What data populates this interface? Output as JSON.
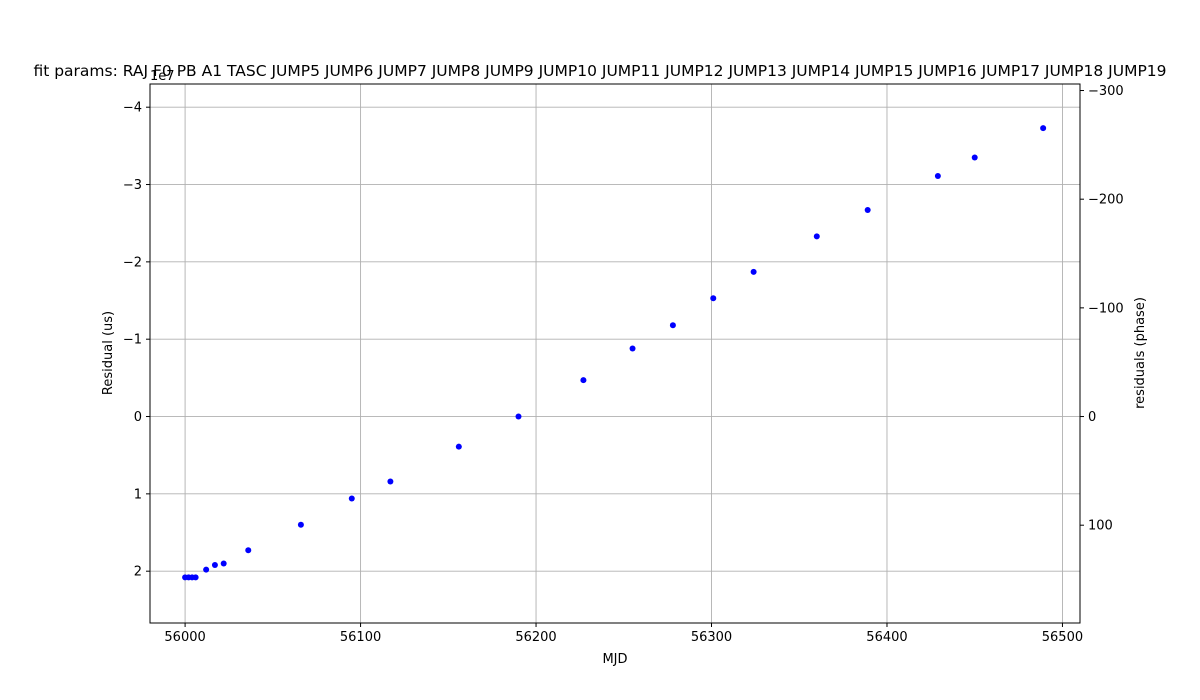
{
  "chart_data": {
    "type": "scatter",
    "title": "fit params: RAJ F0 PB A1 TASC JUMP5 JUMP6 JUMP7 JUMP8 JUMP9 JUMP10 JUMP11 JUMP12 JUMP13 JUMP14 JUMP15 JUMP16 JUMP17 JUMP18 JUMP19",
    "xlabel": "MJD",
    "ylabel": "Residual (us)",
    "y2label": "residuals (phase)",
    "y_offset_text": "1e7",
    "xlim": [
      55980,
      56510
    ],
    "ylim": [
      2.67,
      -4.3
    ],
    "y2lim": [
      190,
      -306
    ],
    "x_ticks": [
      56000,
      56100,
      56200,
      56300,
      56400,
      56500
    ],
    "y_ticks": [
      -4,
      -3,
      -2,
      -1,
      0,
      1,
      2
    ],
    "y_tick_labels": [
      "−4",
      "−3",
      "−2",
      "−1",
      "0",
      "1",
      "2"
    ],
    "y2_ticks": [
      -300,
      -200,
      -100,
      0,
      100
    ],
    "y2_tick_labels": [
      "−300",
      "−200",
      "−100",
      "0",
      "100"
    ],
    "grid": true,
    "marker_color": "#0000ff",
    "series": [
      {
        "x": [
          56000,
          56002,
          56004,
          56006,
          56012,
          56017,
          56022,
          56036,
          56066,
          56095,
          56117,
          56156,
          56190,
          56227,
          56255,
          56278,
          56301,
          56324,
          56360,
          56389,
          56429,
          56450,
          56489
        ],
        "y": [
          2.08,
          2.08,
          2.08,
          2.08,
          1.98,
          1.92,
          1.9,
          1.73,
          1.4,
          1.06,
          0.84,
          0.39,
          0.0,
          -0.47,
          -0.88,
          -1.18,
          -1.53,
          -1.87,
          -2.33,
          -2.67,
          -3.11,
          -3.35,
          -3.73
        ]
      }
    ]
  }
}
